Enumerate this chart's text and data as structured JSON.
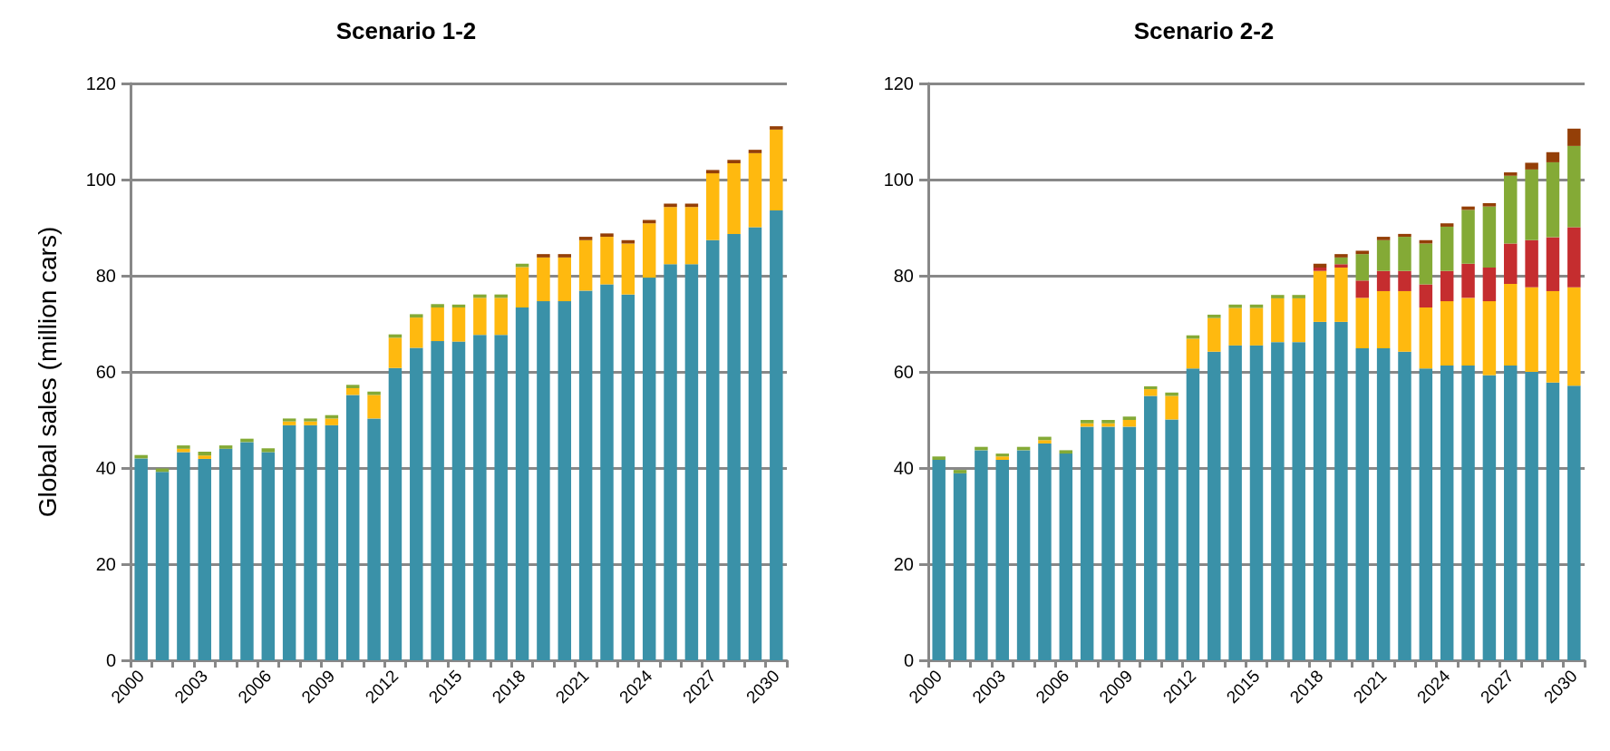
{
  "chart_data": [
    {
      "type": "bar",
      "title": "Scenario 1-2",
      "ylabel": "Global sales (million cars)",
      "stacked": true,
      "grid": "y",
      "categories": [
        "2000",
        null,
        null,
        "2003",
        null,
        null,
        "2006",
        null,
        null,
        "2009",
        null,
        null,
        "2012",
        null,
        null,
        "2015",
        null,
        null,
        "2018",
        null,
        null,
        "2021",
        null,
        null,
        "2024",
        null,
        null,
        "2027",
        null,
        null,
        "2030"
      ],
      "ylim": [
        0,
        120
      ],
      "yticks": [
        0,
        20,
        40,
        60,
        80,
        100,
        120
      ],
      "series": [
        {
          "color": "#3a91a8",
          "values": [
            42.0,
            39.2,
            43.3,
            41.9,
            44.0,
            45.4,
            43.3,
            48.9,
            48.9,
            48.9,
            55.2,
            50.3,
            60.8,
            65.0,
            66.4,
            66.3,
            67.7,
            67.7,
            73.4,
            74.7,
            74.7,
            76.9,
            78.2,
            76.1,
            79.6,
            82.4,
            82.4,
            87.4,
            88.7,
            90.1,
            93.6
          ]
        },
        {
          "color": "#ffb90f",
          "values": [
            0,
            0,
            0.7,
            0.7,
            0,
            0,
            0,
            0.8,
            0.8,
            1.4,
            1.4,
            4.9,
            6.3,
            6.3,
            7.0,
            7.1,
            7.7,
            7.7,
            8.4,
            9.1,
            9.1,
            10.5,
            9.9,
            10.6,
            11.3,
            11.9,
            11.9,
            13.9,
            14.7,
            15.4,
            16.8
          ]
        },
        {
          "color": "#84aa36",
          "values": [
            0.7,
            0.7,
            0.7,
            0.8,
            0.7,
            0.7,
            0.8,
            0.6,
            0.6,
            0.7,
            0.7,
            0.7,
            0.7,
            0.7,
            0.7,
            0.6,
            0.7,
            0.7,
            0.7,
            0,
            0,
            0,
            0,
            0,
            0,
            0,
            0,
            0,
            0,
            0,
            0
          ]
        },
        {
          "color": "#943f07",
          "values": [
            0,
            0,
            0,
            0,
            0,
            0,
            0,
            0,
            0,
            0,
            0,
            0,
            0,
            0,
            0,
            0,
            0,
            0,
            0,
            0.7,
            0.7,
            0.7,
            0.7,
            0.7,
            0.7,
            0.7,
            0.7,
            0.7,
            0.7,
            0.7,
            0.7
          ]
        }
      ]
    },
    {
      "type": "bar",
      "title": "Scenario 2-2",
      "stacked": true,
      "grid": "y",
      "categories": [
        "2000",
        null,
        null,
        "2003",
        null,
        null,
        "2006",
        null,
        null,
        "2009",
        null,
        null,
        "2012",
        null,
        null,
        "2015",
        null,
        null,
        "2018",
        null,
        null,
        "2021",
        null,
        null,
        "2024",
        null,
        null,
        "2027",
        null,
        null,
        "2030"
      ],
      "ylim": [
        0,
        120
      ],
      "yticks": [
        0,
        20,
        40,
        60,
        80,
        100,
        120
      ],
      "series": [
        {
          "color": "#3a91a8",
          "values": [
            41.7,
            38.9,
            43.7,
            41.7,
            43.7,
            45.1,
            43.0,
            48.6,
            48.6,
            48.6,
            55.0,
            50.1,
            60.7,
            64.2,
            65.5,
            65.5,
            66.2,
            66.2,
            70.4,
            70.4,
            64.9,
            64.9,
            64.2,
            60.7,
            61.3,
            61.3,
            59.3,
            61.3,
            60.0,
            57.8,
            57.1
          ]
        },
        {
          "color": "#ffb90f",
          "values": [
            0,
            0,
            0,
            0.7,
            0,
            0.7,
            0,
            0.7,
            0.7,
            1.4,
            1.4,
            4.9,
            6.2,
            7.0,
            7.8,
            7.8,
            9.1,
            9.1,
            10.6,
            11.3,
            10.5,
            11.9,
            12.6,
            12.7,
            13.4,
            14.1,
            15.4,
            17.0,
            17.6,
            19.0,
            20.5
          ]
        },
        {
          "color": "#c52d2f",
          "values": [
            0,
            0,
            0,
            0,
            0,
            0,
            0,
            0,
            0,
            0,
            0,
            0,
            0,
            0,
            0,
            0,
            0,
            0,
            0.7,
            0.7,
            3.6,
            4.2,
            4.2,
            4.8,
            6.3,
            7.1,
            7.0,
            8.4,
            9.8,
            11.2,
            12.5
          ]
        },
        {
          "color": "#84aa36",
          "values": [
            0.7,
            0.7,
            0.7,
            0.6,
            0.7,
            0.7,
            0.7,
            0.7,
            0.7,
            0.7,
            0.6,
            0.7,
            0.7,
            0.7,
            0.7,
            0.7,
            0.7,
            0.7,
            0,
            1.4,
            5.5,
            6.4,
            7.1,
            8.5,
            9.2,
            11.2,
            12.7,
            14.1,
            14.7,
            15.6,
            16.9
          ]
        },
        {
          "color": "#943f07",
          "values": [
            0,
            0,
            0,
            0,
            0,
            0,
            0,
            0,
            0,
            0,
            0,
            0,
            0,
            0,
            0,
            0,
            0,
            0,
            0.8,
            0.7,
            0.7,
            0.7,
            0.6,
            0.7,
            0.7,
            0.7,
            0.7,
            0.7,
            1.4,
            2.1,
            3.6
          ]
        }
      ]
    }
  ]
}
